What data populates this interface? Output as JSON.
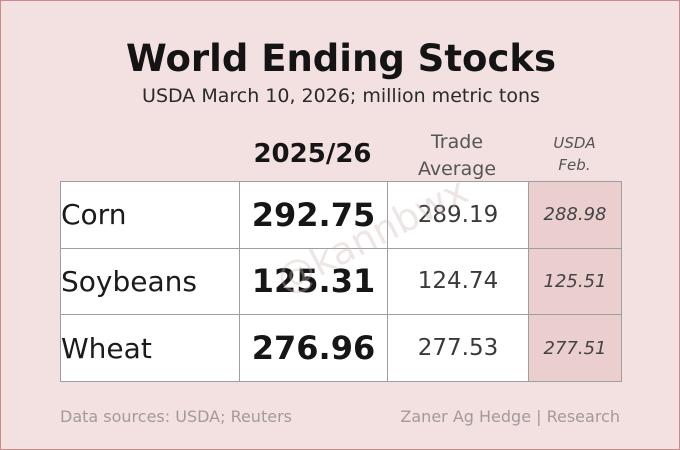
{
  "chart_data": {
    "type": "table",
    "title": "World Ending Stocks",
    "subtitle": "USDA March 10, 2026; million metric tons",
    "columns": [
      "2025/26",
      "Trade Average",
      "USDA Feb."
    ],
    "column_labels": {
      "main": "2025/26",
      "trade_line1": "Trade",
      "trade_line2": "Average",
      "usda_line1": "USDA",
      "usda_line2": "Feb."
    },
    "rows": [
      {
        "name": "Corn",
        "main": "292.75",
        "trade": "289.19",
        "usda": "288.98"
      },
      {
        "name": "Soybeans",
        "main": "125.31",
        "trade": "124.74",
        "usda": "125.51"
      },
      {
        "name": "Wheat",
        "main": "276.96",
        "trade": "277.53",
        "usda": "277.51"
      }
    ],
    "highlight_column_color": "#ebcfcf"
  },
  "colors": {
    "background": "#f3e1e1",
    "border": "#c98b8b",
    "cell": "#ffffff"
  },
  "footer": {
    "source": "Data sources: USDA; Reuters",
    "credit": "Zaner Ag Hedge | Research"
  },
  "watermark": "@kannbwx"
}
